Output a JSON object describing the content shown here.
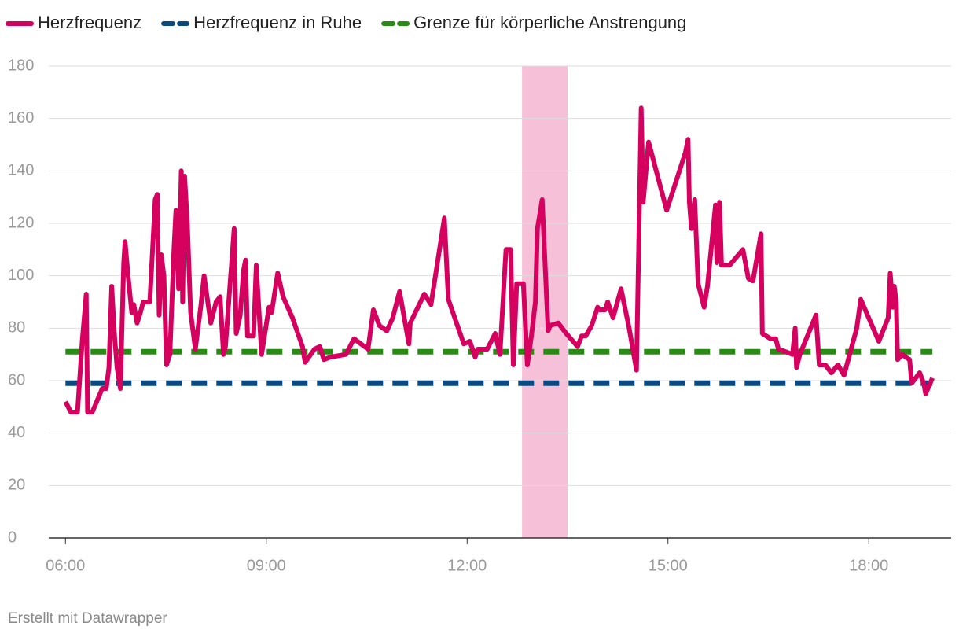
{
  "chart_data": {
    "type": "line",
    "series": [
      {
        "name": "Herzfrequenz",
        "color": "#d6005f",
        "dash": false,
        "x": [
          6.0,
          6.08,
          6.18,
          6.25,
          6.31,
          6.33,
          6.4,
          6.55,
          6.61,
          6.65,
          6.69,
          6.73,
          6.77,
          6.82,
          6.87,
          6.89,
          6.94,
          6.99,
          7.02,
          7.07,
          7.12,
          7.16,
          7.26,
          7.34,
          7.37,
          7.4,
          7.43,
          7.47,
          7.51,
          7.56,
          7.62,
          7.65,
          7.69,
          7.73,
          7.75,
          7.78,
          7.82,
          7.87,
          7.94,
          8.02,
          8.07,
          8.17,
          8.25,
          8.31,
          8.36,
          8.39,
          8.52,
          8.55,
          8.61,
          8.66,
          8.69,
          8.72,
          8.81,
          8.85,
          8.93,
          9.04,
          9.08,
          9.17,
          9.25,
          9.39,
          9.54,
          9.58,
          9.72,
          9.8,
          9.86,
          9.96,
          10.19,
          10.31,
          10.52,
          10.6,
          10.69,
          10.8,
          10.89,
          10.99,
          11.13,
          11.15,
          11.36,
          11.46,
          11.66,
          11.72,
          11.95,
          12.04,
          12.12,
          12.16,
          12.3,
          12.42,
          12.49,
          12.58,
          12.65,
          12.69,
          12.74,
          12.84,
          12.9,
          12.96,
          13.02,
          13.05,
          13.12,
          13.21,
          13.24,
          13.36,
          13.48,
          13.65,
          13.71,
          13.77,
          13.86,
          13.95,
          13.98,
          14.06,
          14.1,
          14.18,
          14.3,
          14.42,
          14.53,
          14.6,
          14.63,
          14.71,
          14.98,
          15.26,
          15.3,
          15.32,
          15.35,
          15.4,
          15.45,
          15.54,
          15.59,
          15.71,
          15.73,
          15.77,
          15.8,
          15.92,
          16.12,
          16.2,
          16.27,
          16.39,
          16.41,
          16.53,
          16.61,
          16.65,
          16.76,
          16.86,
          16.9,
          16.92,
          16.97,
          17.21,
          17.26,
          17.35,
          17.44,
          17.54,
          17.63,
          17.82,
          17.88,
          18.15,
          18.29,
          18.32,
          18.36,
          18.38,
          18.41,
          18.43,
          18.5,
          18.55,
          18.61,
          18.64,
          18.76,
          18.82,
          18.85,
          18.95
        ],
        "values": [
          52,
          48,
          48,
          75,
          93,
          48,
          48,
          57,
          57,
          65,
          96,
          78,
          65,
          57,
          105,
          113,
          99,
          86,
          89,
          82,
          86,
          90,
          90,
          129,
          131,
          85,
          108,
          100,
          66,
          70,
          110,
          125,
          95,
          140,
          90,
          138,
          120,
          86,
          72,
          88,
          100,
          82,
          90,
          92,
          70,
          73,
          118,
          78,
          85,
          102,
          106,
          77,
          77,
          104,
          70,
          88,
          86,
          101,
          92,
          84,
          73,
          67,
          72,
          73,
          68,
          69,
          70,
          76,
          72,
          87,
          81,
          79,
          84,
          94,
          74,
          82,
          93,
          89,
          122,
          91,
          74,
          75,
          69,
          72,
          72,
          78,
          70,
          110,
          110,
          66,
          97,
          97,
          66,
          77,
          90,
          118,
          129,
          79,
          81,
          82,
          78,
          73,
          77,
          77,
          81,
          88,
          87,
          87,
          90,
          84,
          95,
          80,
          64,
          164,
          128,
          151,
          125,
          147,
          152,
          128,
          118,
          129,
          97,
          88,
          96,
          127,
          105,
          128,
          104,
          104,
          110,
          99,
          98,
          116,
          78,
          76,
          76,
          72,
          71,
          70,
          80,
          65,
          70,
          85,
          66,
          66,
          63,
          66,
          62,
          80,
          91,
          75,
          84,
          101,
          88,
          96,
          90,
          68,
          70,
          69,
          68,
          59,
          63,
          59,
          55,
          61
        ]
      },
      {
        "name": "Herzfrequenz in Ruhe",
        "color": "#0b4a80",
        "dash": true,
        "x": [
          6.0,
          18.95
        ],
        "values": [
          59,
          59
        ]
      },
      {
        "name": "Grenze für körperliche Anstrengung",
        "color": "#2a8a16",
        "dash": true,
        "x": [
          6.0,
          18.95
        ],
        "values": [
          71,
          71
        ]
      }
    ],
    "highlight": {
      "x": [
        12.82,
        13.5
      ],
      "color": "#f5c0d8"
    },
    "xlim": [
      5.75,
      19.23
    ],
    "xticks": [
      {
        "value": 6,
        "label": "06:00"
      },
      {
        "value": 9,
        "label": "09:00"
      },
      {
        "value": 12,
        "label": "12:00"
      },
      {
        "value": 15,
        "label": "15:00"
      },
      {
        "value": 18,
        "label": "18:00"
      }
    ],
    "ylim": [
      0,
      180
    ],
    "yticks": [
      0,
      20,
      40,
      60,
      80,
      100,
      120,
      140,
      160,
      180
    ],
    "grid": true,
    "source": "Erstellt mit Datawrapper"
  }
}
